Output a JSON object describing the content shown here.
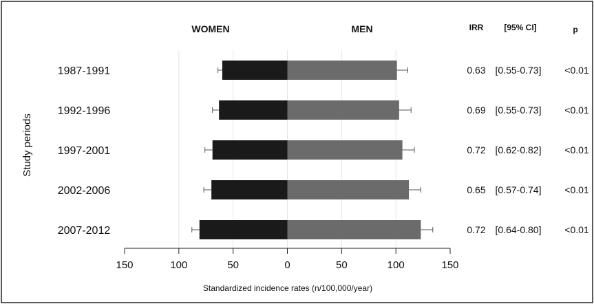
{
  "chart_data": {
    "type": "bar",
    "orientation": "horizontal-diverging",
    "categories": [
      "1987-1991",
      "1992-1996",
      "1997-2001",
      "2002-2006",
      "2007-2012"
    ],
    "series": [
      {
        "name": "WOMEN",
        "values": [
          60,
          63,
          69,
          70,
          81
        ],
        "error": [
          4,
          6,
          7,
          7,
          7
        ],
        "color": "#1a1a1a"
      },
      {
        "name": "MEN",
        "values": [
          101,
          103,
          106,
          112,
          123
        ],
        "error": [
          10,
          11,
          11,
          11,
          11
        ],
        "color": "#6b6b6b"
      }
    ],
    "xlabel": "Standardized incidence rates (n/100,000/year)",
    "ylabel": "Study periods",
    "xlim": [
      -150,
      150
    ],
    "x_ticks": [
      {
        "value": -150,
        "label": "150"
      },
      {
        "value": -100,
        "label": "100"
      },
      {
        "value": -50,
        "label": "50"
      },
      {
        "value": 0,
        "label": "0"
      },
      {
        "value": 50,
        "label": "50"
      },
      {
        "value": 100,
        "label": "100"
      },
      {
        "value": 150,
        "label": "150"
      }
    ],
    "grid": "vertical",
    "table": {
      "headers": {
        "irr": "IRR",
        "ci": "[95% CI]",
        "p": "p"
      },
      "rows": [
        {
          "irr": "0.63",
          "ci": "[0.55-0.73]",
          "p": "<0.01"
        },
        {
          "irr": "0.69",
          "ci": "[0.55-0.73]",
          "p": "<0.01"
        },
        {
          "irr": "0.72",
          "ci": "[0.62-0.82]",
          "p": "<0.01"
        },
        {
          "irr": "0.65",
          "ci": "[0.57-0.74]",
          "p": "<0.01"
        },
        {
          "irr": "0.72",
          "ci": "[0.64-0.80]",
          "p": "<0.01"
        }
      ]
    }
  }
}
